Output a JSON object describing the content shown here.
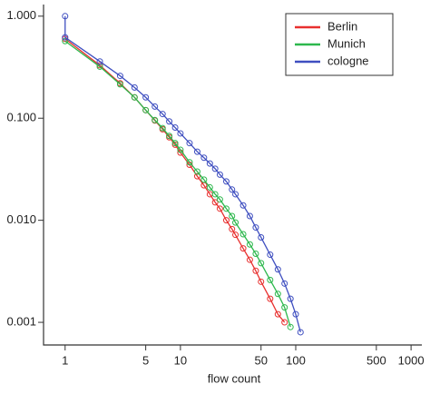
{
  "chart_data": {
    "type": "line",
    "x_label": "flow count",
    "xlog": true,
    "ylog": true,
    "xlim": [
      0.65,
      1240
    ],
    "ylim": [
      0.0006,
      1.3
    ],
    "xticks": [
      1,
      5,
      10,
      50,
      100,
      500,
      1000
    ],
    "yticks": [
      {
        "value": 1,
        "label": "1.000"
      },
      {
        "value": 0.1,
        "label": "0.100"
      },
      {
        "value": 0.01,
        "label": "0.010"
      },
      {
        "value": 0.001,
        "label": "0.001"
      }
    ],
    "legend": "top-right",
    "series": [
      {
        "name": "Berlin",
        "color": "#e8302f",
        "x": [
          1,
          2,
          3,
          4,
          5,
          6,
          7,
          8,
          9,
          10,
          12,
          14,
          16,
          18,
          20,
          22,
          25,
          28,
          30,
          35,
          40,
          45,
          50,
          60,
          70,
          80
        ],
        "values": [
          0.6,
          0.33,
          0.22,
          0.16,
          0.12,
          0.095,
          0.078,
          0.065,
          0.055,
          0.046,
          0.035,
          0.027,
          0.022,
          0.018,
          0.015,
          0.013,
          0.01,
          0.0082,
          0.0072,
          0.0053,
          0.0041,
          0.0032,
          0.0025,
          0.0017,
          0.0012,
          0.001
        ]
      },
      {
        "name": "Munich",
        "color": "#2db84d",
        "x": [
          1,
          2,
          3,
          4,
          5,
          6,
          7,
          8,
          9,
          10,
          12,
          14,
          16,
          18,
          20,
          22,
          25,
          28,
          30,
          35,
          40,
          45,
          50,
          60,
          70,
          80,
          90
        ],
        "values": [
          0.57,
          0.32,
          0.215,
          0.16,
          0.12,
          0.096,
          0.08,
          0.067,
          0.057,
          0.049,
          0.037,
          0.03,
          0.025,
          0.021,
          0.018,
          0.016,
          0.013,
          0.011,
          0.0095,
          0.0073,
          0.0058,
          0.0047,
          0.0038,
          0.0026,
          0.0019,
          0.0014,
          0.0009
        ]
      },
      {
        "name": "cologne",
        "color": "#3f4fc0",
        "x": [
          1,
          1,
          2,
          3,
          4,
          5,
          6,
          7,
          8,
          9,
          10,
          12,
          14,
          16,
          18,
          20,
          22,
          25,
          28,
          30,
          35,
          40,
          45,
          50,
          60,
          70,
          80,
          90,
          100,
          110
        ],
        "values": [
          1.0,
          0.62,
          0.36,
          0.26,
          0.2,
          0.16,
          0.13,
          0.11,
          0.093,
          0.081,
          0.071,
          0.057,
          0.047,
          0.041,
          0.036,
          0.032,
          0.028,
          0.024,
          0.02,
          0.018,
          0.014,
          0.011,
          0.0085,
          0.0068,
          0.0046,
          0.0033,
          0.0024,
          0.0017,
          0.0012,
          0.0008
        ]
      }
    ]
  }
}
